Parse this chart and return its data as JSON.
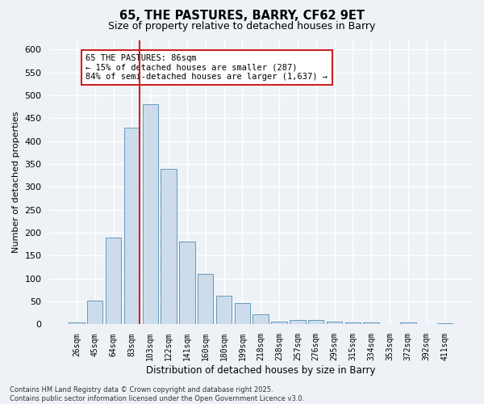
{
  "title_line1": "65, THE PASTURES, BARRY, CF62 9ET",
  "title_line2": "Size of property relative to detached houses in Barry",
  "xlabel": "Distribution of detached houses by size in Barry",
  "ylabel": "Number of detached properties",
  "categories": [
    "26sqm",
    "45sqm",
    "64sqm",
    "83sqm",
    "103sqm",
    "122sqm",
    "141sqm",
    "160sqm",
    "180sqm",
    "199sqm",
    "218sqm",
    "238sqm",
    "257sqm",
    "276sqm",
    "295sqm",
    "315sqm",
    "334sqm",
    "353sqm",
    "372sqm",
    "392sqm",
    "411sqm"
  ],
  "values": [
    5,
    52,
    190,
    430,
    480,
    340,
    180,
    110,
    62,
    47,
    22,
    7,
    10,
    10,
    6,
    5,
    4,
    1,
    5,
    1,
    2
  ],
  "bar_color": "#ccdcec",
  "bar_edge_color": "#6699bb",
  "vline_x_index": 3,
  "vline_color": "#cc2222",
  "annotation_text": "65 THE PASTURES: 86sqm\n← 15% of detached houses are smaller (287)\n84% of semi-detached houses are larger (1,637) →",
  "annotation_box_facecolor": "#ffffff",
  "annotation_box_edgecolor": "#cc2222",
  "ylim": [
    0,
    620
  ],
  "yticks": [
    0,
    50,
    100,
    150,
    200,
    250,
    300,
    350,
    400,
    450,
    500,
    550,
    600
  ],
  "footer_text": "Contains HM Land Registry data © Crown copyright and database right 2025.\nContains public sector information licensed under the Open Government Licence v3.0.",
  "bg_color": "#eef2f7",
  "grid_color": "#ffffff"
}
